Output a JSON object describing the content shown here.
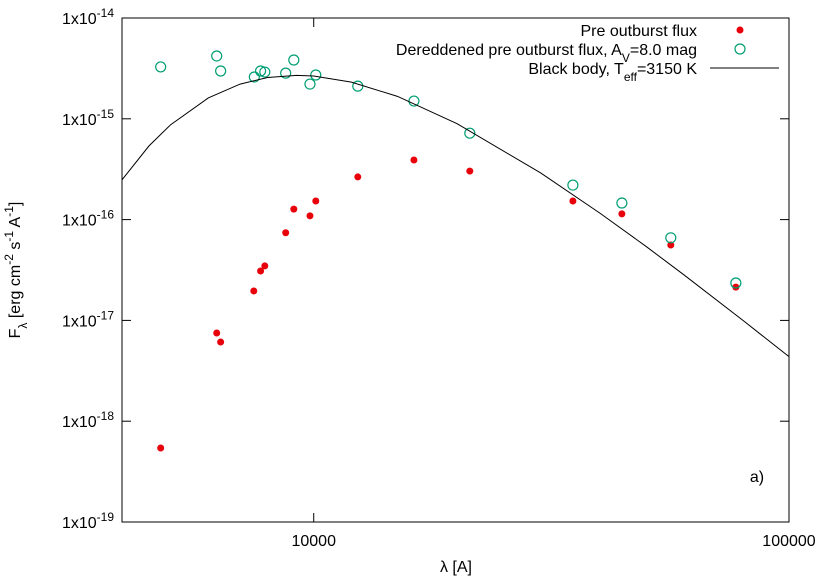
{
  "chart_data": {
    "type": "scatter",
    "xlabel": "λ [A]",
    "ylabel": [
      {
        "text": "F",
        "shift": "none"
      },
      {
        "text": "λ",
        "shift": "sub"
      },
      {
        "text": " [erg cm",
        "shift": "none"
      },
      {
        "text": "-2",
        "shift": "sup"
      },
      {
        "text": " s",
        "shift": "none"
      },
      {
        "text": "-1",
        "shift": "sup"
      },
      {
        "text": " A",
        "shift": "none"
      },
      {
        "text": "-1",
        "shift": "sup"
      },
      {
        "text": "]",
        "shift": "none"
      }
    ],
    "xscale": "log",
    "yscale": "log",
    "xlim": [
      3950,
      100000
    ],
    "ylim": [
      1e-19,
      1e-14
    ],
    "xticks": [
      10000,
      100000
    ],
    "yticks": [
      {
        "value": 1e-19,
        "label": "1x10",
        "label_exp": "-19"
      },
      {
        "value": 1e-18,
        "label": "1x10",
        "label_exp": "-18"
      },
      {
        "value": 1e-17,
        "label": "1x10",
        "label_exp": "-17"
      },
      {
        "value": 1e-16,
        "label": "1x10",
        "label_exp": "-16"
      },
      {
        "value": 1e-15,
        "label": "1x10",
        "label_exp": "-15"
      },
      {
        "value": 1e-14,
        "label": "1x10",
        "label_exp": "-14"
      }
    ],
    "grid": false,
    "legend": "upper right",
    "annotation": "a)",
    "series": [
      {
        "name": [
          {
            "text": "Pre outburst flux",
            "shift": "none"
          }
        ],
        "kind": "filled",
        "color": "#e8000b",
        "x": [
          4764,
          6250,
          6370,
          7480,
          7730,
          7890,
          8730,
          9080,
          9820,
          10100,
          12380,
          16250,
          21300,
          35100,
          44500,
          56400,
          77300
        ],
        "values": [
          5.42e-19,
          7.5e-18,
          6.1e-18,
          1.96e-17,
          3.09e-17,
          3.47e-17,
          7.4e-17,
          1.27e-16,
          1.09e-16,
          1.53e-16,
          2.65e-16,
          3.9e-16,
          3.03e-16,
          1.53e-16,
          1.14e-16,
          5.6e-17,
          2.14e-17
        ]
      },
      {
        "name": [
          {
            "text": "Dereddened pre outburst flux, A",
            "shift": "none"
          },
          {
            "text": "V",
            "shift": "sub"
          },
          {
            "text": "=8.0 mag",
            "shift": "none"
          }
        ],
        "kind": "open",
        "color": "#009e73",
        "x": [
          4764,
          6250,
          6370,
          7500,
          7730,
          7890,
          8730,
          9080,
          9820,
          10100,
          12380,
          16250,
          21300,
          35100,
          44500,
          56400,
          77300
        ],
        "values": [
          3.27e-15,
          4.2e-15,
          2.98e-15,
          2.6e-15,
          2.98e-15,
          2.91e-15,
          2.84e-15,
          3.83e-15,
          2.21e-15,
          2.72e-15,
          2.11e-15,
          1.5e-15,
          7.2e-16,
          2.2e-16,
          1.46e-16,
          6.6e-17,
          2.35e-17
        ]
      },
      {
        "name": [
          {
            "text": "Black body, T",
            "shift": "none"
          },
          {
            "text": "eff",
            "shift": "sub"
          },
          {
            "text": "=3150 K",
            "shift": "none"
          }
        ],
        "kind": "line",
        "color": "#000000",
        "x": [
          3950,
          4500,
          5000,
          6000,
          7000,
          8000,
          9200,
          10000,
          12000,
          15000,
          20000,
          30000,
          40000,
          50000,
          60000,
          80000,
          100000
        ],
        "values": [
          2.48e-16,
          5.37e-16,
          8.74e-16,
          1.61e-15,
          2.21e-15,
          2.57e-15,
          2.7e-15,
          2.66e-15,
          2.31e-15,
          1.67e-15,
          8.98e-16,
          2.91e-16,
          1.16e-16,
          5.43e-17,
          2.85e-17,
          1e-17,
          4.37e-18
        ]
      }
    ]
  }
}
